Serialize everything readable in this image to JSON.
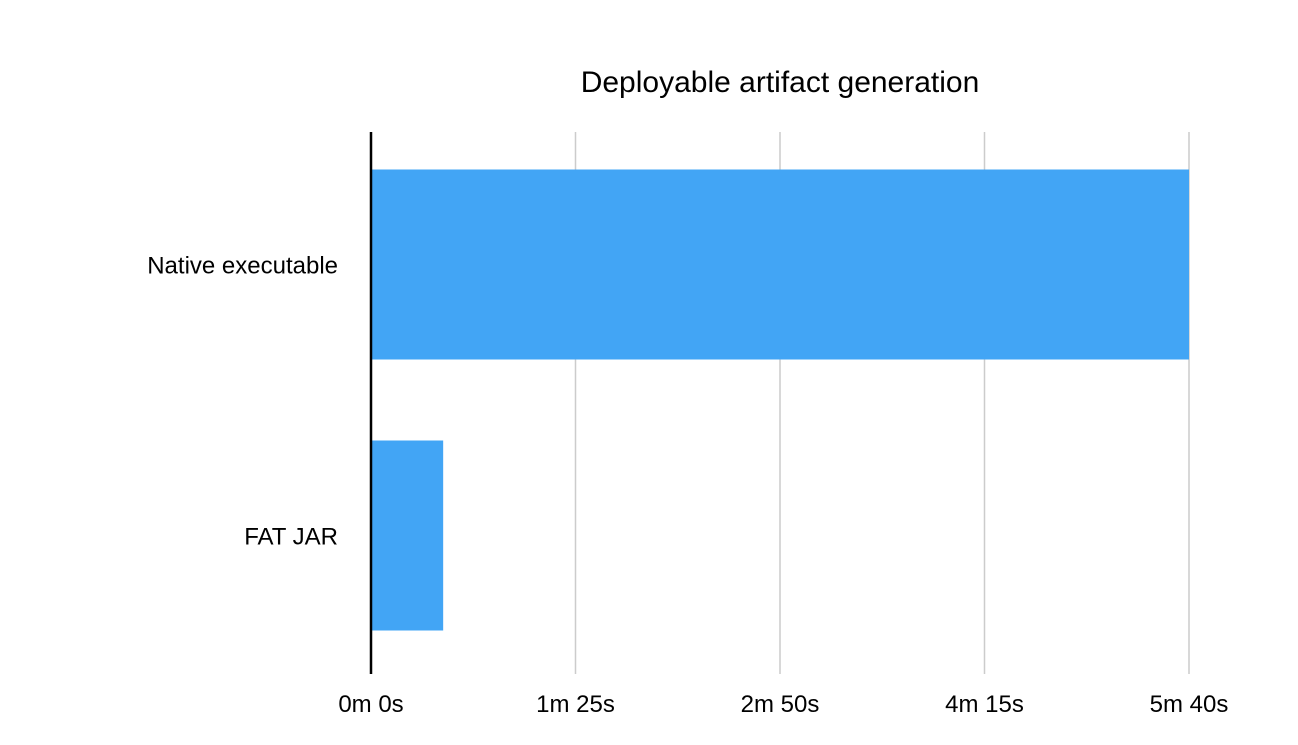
{
  "chart_data": {
    "type": "bar",
    "orientation": "horizontal",
    "title": "Deployable artifact generation",
    "xlabel": "",
    "ylabel": "",
    "categories": [
      "Native executable",
      "FAT JAR"
    ],
    "series": [
      {
        "values": [
          340,
          30
        ],
        "color": "#42a5f5"
      }
    ],
    "xlim": [
      0,
      340
    ],
    "xticks": [
      {
        "value": 0,
        "label": "0m 0s"
      },
      {
        "value": 85,
        "label": "1m 25s"
      },
      {
        "value": 170,
        "label": "2m 50s"
      },
      {
        "value": 255,
        "label": "4m 15s"
      },
      {
        "value": 340,
        "label": "5m 40s"
      }
    ],
    "grid": true,
    "legend": "none"
  }
}
